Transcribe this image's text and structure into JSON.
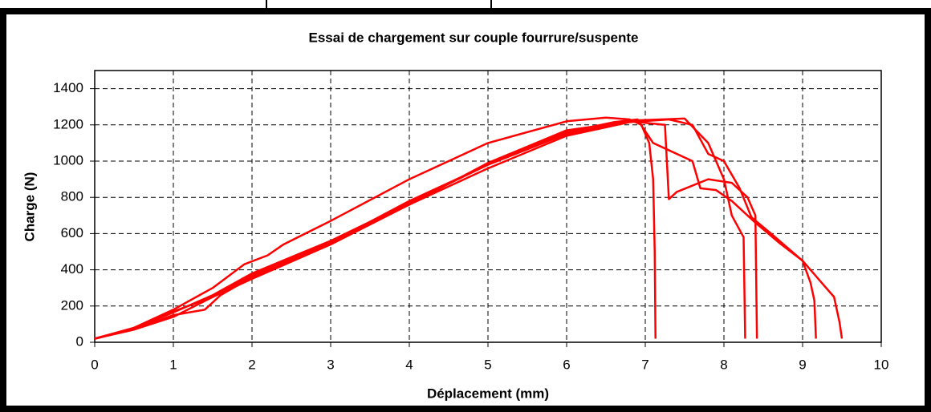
{
  "chart_data": {
    "type": "line",
    "title": "Essai de chargement sur couple fourrure/suspente",
    "x_label": "Déplacement (mm)",
    "y_label": "Charge (N)",
    "xlim": [
      0,
      10
    ],
    "xticks": [
      0,
      1,
      2,
      3,
      4,
      5,
      6,
      7,
      8,
      9,
      10
    ],
    "ylim": [
      0,
      1500
    ],
    "yticks": [
      0,
      200,
      400,
      600,
      800,
      1000,
      1200,
      1400
    ],
    "grid": true,
    "series": [
      {
        "color": "#ff0000",
        "x": [
          0,
          0.5,
          1,
          1.5,
          1.9,
          2.2,
          2.4,
          3,
          4,
          5,
          6,
          6.5,
          6.8,
          6.95,
          7.05,
          7.1,
          7.12,
          7.13
        ],
        "values": [
          20,
          80,
          180,
          300,
          430,
          480,
          540,
          670,
          900,
          1100,
          1220,
          1240,
          1230,
          1200,
          1100,
          900,
          500,
          20
        ]
      },
      {
        "color": "#ff0000",
        "x": [
          0,
          0.5,
          1,
          1.5,
          2,
          3,
          4,
          5,
          6,
          6.6,
          6.9,
          7.1,
          7.3,
          7.6,
          7.7,
          7.9,
          8.1,
          8.3,
          8.4,
          8.7,
          9,
          9.2,
          9.4,
          9.47,
          9.5
        ],
        "values": [
          20,
          75,
          165,
          260,
          380,
          560,
          770,
          980,
          1160,
          1215,
          1230,
          1100,
          1060,
          1000,
          850,
          840,
          780,
          700,
          660,
          550,
          450,
          350,
          250,
          110,
          20
        ]
      },
      {
        "color": "#ff0000",
        "x": [
          0,
          0.5,
          1,
          1.4,
          1.6,
          2,
          3,
          4,
          5,
          6,
          6.8,
          7.25,
          7.3,
          7.4,
          7.8,
          8.1,
          8.3,
          8.4,
          8.42
        ],
        "values": [
          20,
          70,
          150,
          180,
          260,
          360,
          550,
          780,
          980,
          1150,
          1220,
          1200,
          790,
          830,
          900,
          880,
          800,
          700,
          20
        ]
      },
      {
        "color": "#ff0000",
        "x": [
          0,
          0.5,
          1,
          1.5,
          2,
          3,
          4,
          5,
          6,
          6.8,
          7.3,
          7.6,
          7.8,
          8,
          8.2,
          8.35,
          8.6,
          9,
          9.1,
          9.15,
          9.17
        ],
        "values": [
          20,
          80,
          170,
          250,
          350,
          540,
          760,
          960,
          1140,
          1215,
          1230,
          1200,
          1040,
          1000,
          850,
          690,
          600,
          450,
          330,
          230,
          20
        ]
      },
      {
        "color": "#ff0000",
        "x": [
          0,
          0.5,
          1,
          1.5,
          2,
          3,
          4,
          5,
          6,
          6.9,
          7.5,
          7.8,
          8,
          8.1,
          8.25,
          8.27
        ],
        "values": [
          20,
          70,
          140,
          250,
          370,
          550,
          760,
          990,
          1170,
          1225,
          1235,
          1100,
          900,
          700,
          580,
          20
        ]
      }
    ]
  }
}
